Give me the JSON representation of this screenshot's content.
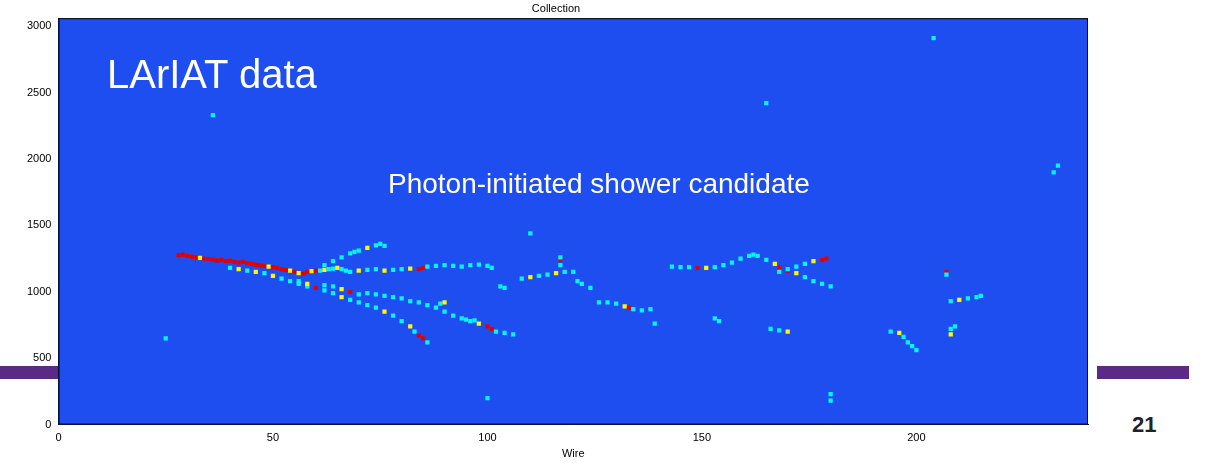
{
  "chart_data": {
    "type": "heatmap",
    "title": "Collection",
    "x_label": "Wire",
    "annotations": [
      "LArIAT data",
      "Photon-initiated shower candidate"
    ],
    "xlim": [
      0,
      240
    ],
    "xticks": [
      0,
      50,
      100,
      150,
      200
    ],
    "ylim": [
      0,
      3060
    ],
    "yticks": [
      0,
      500,
      1000,
      1500,
      2000,
      2500,
      3000
    ],
    "grid": false,
    "cells": [
      [
        28,
        1275,
        3
      ],
      [
        29,
        1280,
        3
      ],
      [
        30,
        1270,
        3
      ],
      [
        31,
        1265,
        3
      ],
      [
        32,
        1260,
        3
      ],
      [
        33,
        1255,
        2
      ],
      [
        34,
        1250,
        3
      ],
      [
        35,
        1245,
        3
      ],
      [
        36,
        1240,
        3
      ],
      [
        37,
        1235,
        3
      ],
      [
        38,
        1240,
        3
      ],
      [
        39,
        1230,
        3
      ],
      [
        40,
        1235,
        3
      ],
      [
        41,
        1225,
        3
      ],
      [
        42,
        1220,
        3
      ],
      [
        43,
        1225,
        3
      ],
      [
        44,
        1215,
        3
      ],
      [
        45,
        1210,
        3
      ],
      [
        46,
        1205,
        3
      ],
      [
        47,
        1200,
        3
      ],
      [
        48,
        1195,
        3
      ],
      [
        49,
        1190,
        2
      ],
      [
        50,
        1185,
        3
      ],
      [
        51,
        1180,
        3
      ],
      [
        52,
        1170,
        3
      ],
      [
        53,
        1165,
        3
      ],
      [
        54,
        1160,
        2
      ],
      [
        55,
        1150,
        3
      ],
      [
        56,
        1140,
        2
      ],
      [
        57,
        1135,
        3
      ],
      [
        58,
        1150,
        3
      ],
      [
        59,
        1155,
        2
      ],
      [
        60,
        1160,
        3
      ],
      [
        40,
        1180,
        1
      ],
      [
        42,
        1170,
        2
      ],
      [
        44,
        1160,
        1
      ],
      [
        46,
        1150,
        2
      ],
      [
        48,
        1140,
        1
      ],
      [
        50,
        1120,
        2
      ],
      [
        52,
        1100,
        1
      ],
      [
        54,
        1080,
        1
      ],
      [
        56,
        1060,
        1
      ],
      [
        58,
        1040,
        1
      ],
      [
        61,
        1160,
        1
      ],
      [
        62,
        1165,
        2
      ],
      [
        63,
        1170,
        1
      ],
      [
        64,
        1175,
        1
      ],
      [
        65,
        1180,
        2
      ],
      [
        66,
        1170,
        1
      ],
      [
        67,
        1160,
        1
      ],
      [
        68,
        1150,
        1
      ],
      [
        70,
        1160,
        2
      ],
      [
        72,
        1165,
        1
      ],
      [
        74,
        1170,
        1
      ],
      [
        76,
        1160,
        2
      ],
      [
        78,
        1165,
        1
      ],
      [
        80,
        1170,
        1
      ],
      [
        82,
        1175,
        2
      ],
      [
        84,
        1170,
        3
      ],
      [
        85,
        1180,
        3
      ],
      [
        86,
        1190,
        1
      ],
      [
        88,
        1195,
        1
      ],
      [
        90,
        1200,
        1
      ],
      [
        92,
        1195,
        1
      ],
      [
        94,
        1190,
        1
      ],
      [
        96,
        1200,
        1
      ],
      [
        98,
        1205,
        1
      ],
      [
        100,
        1195,
        1
      ],
      [
        101,
        1180,
        1
      ],
      [
        62,
        1200,
        1
      ],
      [
        64,
        1230,
        1
      ],
      [
        66,
        1260,
        1
      ],
      [
        68,
        1290,
        1
      ],
      [
        69,
        1300,
        1
      ],
      [
        70,
        1310,
        1
      ],
      [
        72,
        1330,
        2
      ],
      [
        74,
        1350,
        1
      ],
      [
        75,
        1360,
        1
      ],
      [
        76,
        1345,
        1
      ],
      [
        56,
        1080,
        1
      ],
      [
        58,
        1060,
        2
      ],
      [
        60,
        1030,
        3
      ],
      [
        62,
        1010,
        1
      ],
      [
        64,
        990,
        1
      ],
      [
        66,
        960,
        2
      ],
      [
        68,
        940,
        1
      ],
      [
        70,
        920,
        1
      ],
      [
        72,
        900,
        1
      ],
      [
        74,
        880,
        1
      ],
      [
        76,
        850,
        2
      ],
      [
        78,
        820,
        1
      ],
      [
        80,
        780,
        1
      ],
      [
        82,
        740,
        2
      ],
      [
        83,
        700,
        1
      ],
      [
        84,
        670,
        3
      ],
      [
        85,
        650,
        3
      ],
      [
        86,
        620,
        1
      ],
      [
        62,
        1050,
        1
      ],
      [
        64,
        1040,
        1
      ],
      [
        66,
        1020,
        2
      ],
      [
        68,
        1000,
        3
      ],
      [
        70,
        980,
        1
      ],
      [
        72,
        990,
        1
      ],
      [
        74,
        980,
        1
      ],
      [
        76,
        970,
        1
      ],
      [
        78,
        960,
        1
      ],
      [
        80,
        950,
        1
      ],
      [
        82,
        930,
        1
      ],
      [
        84,
        920,
        1
      ],
      [
        86,
        900,
        1
      ],
      [
        88,
        880,
        1
      ],
      [
        90,
        850,
        1
      ],
      [
        92,
        820,
        1
      ],
      [
        94,
        800,
        1
      ],
      [
        96,
        780,
        1
      ],
      [
        98,
        760,
        2
      ],
      [
        100,
        740,
        3
      ],
      [
        101,
        720,
        3
      ],
      [
        102,
        700,
        1
      ],
      [
        104,
        690,
        1
      ],
      [
        106,
        680,
        1
      ],
      [
        95,
        790,
        1
      ],
      [
        97,
        785,
        1
      ],
      [
        89,
        910,
        1
      ],
      [
        90,
        920,
        2
      ],
      [
        108,
        1100,
        1
      ],
      [
        110,
        1110,
        2
      ],
      [
        112,
        1120,
        1
      ],
      [
        114,
        1130,
        1
      ],
      [
        116,
        1140,
        2
      ],
      [
        118,
        1150,
        1
      ],
      [
        120,
        1150,
        1
      ],
      [
        117,
        1200,
        1
      ],
      [
        117,
        1240,
        3
      ],
      [
        117,
        1260,
        1
      ],
      [
        103,
        1040,
        1
      ],
      [
        104,
        1030,
        1
      ],
      [
        121,
        1080,
        1
      ],
      [
        122,
        1060,
        1
      ],
      [
        124,
        1030,
        1
      ],
      [
        126,
        920,
        1
      ],
      [
        128,
        920,
        1
      ],
      [
        130,
        910,
        1
      ],
      [
        132,
        890,
        2
      ],
      [
        133,
        880,
        3
      ],
      [
        134,
        870,
        1
      ],
      [
        136,
        860,
        1
      ],
      [
        138,
        870,
        1
      ],
      [
        139,
        760,
        1
      ],
      [
        143,
        1190,
        1
      ],
      [
        145,
        1185,
        1
      ],
      [
        147,
        1185,
        1
      ],
      [
        149,
        1180,
        3
      ],
      [
        151,
        1180,
        2
      ],
      [
        153,
        1185,
        1
      ],
      [
        155,
        1200,
        1
      ],
      [
        157,
        1220,
        1
      ],
      [
        159,
        1250,
        1
      ],
      [
        161,
        1270,
        1
      ],
      [
        162,
        1280,
        1
      ],
      [
        163,
        1270,
        1
      ],
      [
        165,
        1240,
        1
      ],
      [
        167,
        1210,
        2
      ],
      [
        168,
        1180,
        3
      ],
      [
        170,
        1160,
        3
      ],
      [
        172,
        1140,
        2
      ],
      [
        174,
        1110,
        1
      ],
      [
        176,
        1080,
        1
      ],
      [
        178,
        1060,
        1
      ],
      [
        180,
        1040,
        1
      ],
      [
        168,
        1150,
        1
      ],
      [
        170,
        1170,
        1
      ],
      [
        172,
        1190,
        1
      ],
      [
        174,
        1210,
        1
      ],
      [
        176,
        1230,
        2
      ],
      [
        178,
        1240,
        3
      ],
      [
        179,
        1250,
        3
      ],
      [
        153,
        800,
        1
      ],
      [
        154,
        780,
        1
      ],
      [
        166,
        720,
        1
      ],
      [
        168,
        710,
        1
      ],
      [
        170,
        700,
        2
      ],
      [
        180,
        230,
        1
      ],
      [
        180,
        180,
        1
      ],
      [
        194,
        700,
        1
      ],
      [
        196,
        690,
        2
      ],
      [
        197,
        660,
        1
      ],
      [
        198,
        620,
        1
      ],
      [
        199,
        590,
        1
      ],
      [
        200,
        560,
        1
      ],
      [
        207,
        1150,
        3
      ],
      [
        207,
        1130,
        1
      ],
      [
        208,
        930,
        1
      ],
      [
        210,
        940,
        2
      ],
      [
        212,
        950,
        1
      ],
      [
        214,
        960,
        1
      ],
      [
        215,
        970,
        1
      ],
      [
        208,
        680,
        2
      ],
      [
        208,
        720,
        1
      ],
      [
        209,
        740,
        1
      ],
      [
        204,
        2910,
        1
      ],
      [
        232,
        1900,
        1
      ],
      [
        233,
        1950,
        1
      ],
      [
        25,
        650,
        1
      ],
      [
        36,
        2330,
        1
      ],
      [
        165,
        2420,
        1
      ],
      [
        110,
        1440,
        1
      ],
      [
        100,
        200,
        1
      ]
    ]
  },
  "slide": {
    "page_number": 21
  }
}
